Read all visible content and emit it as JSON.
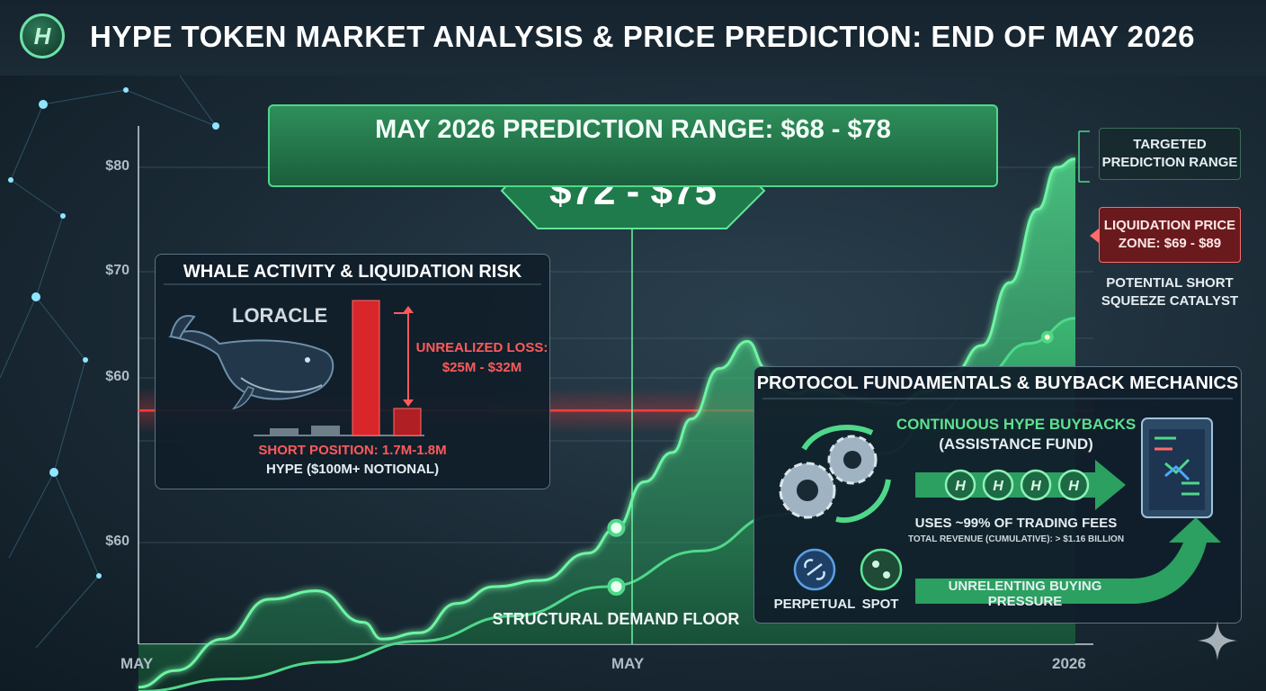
{
  "header": {
    "logo_letter": "H",
    "title": "HYPE TOKEN MARKET ANALYSIS & PRICE PREDICTION: END OF MAY 2026"
  },
  "colors": {
    "accent_green": "#4fd88a",
    "liquidation_red": "#ff3b3b",
    "background": "#1a2a35"
  },
  "chart_data": {
    "type": "area",
    "y_tick_labels": [
      "$80",
      "$70",
      "$60",
      "$60"
    ],
    "x_tick_labels": [
      "MAY",
      "MAY",
      "2026"
    ],
    "grid": true,
    "series": [
      {
        "color": "#4fd88a",
        "note": "upper price curve (values in the chart's printed y units)",
        "points": [
          [
            0,
            57.2
          ],
          [
            4,
            58.0
          ],
          [
            9,
            59.5
          ],
          [
            14,
            61.4
          ],
          [
            19,
            61.8
          ],
          [
            24,
            60.3
          ],
          [
            26,
            59.5
          ],
          [
            30,
            59.8
          ],
          [
            34,
            61.2
          ],
          [
            38,
            62.0
          ],
          [
            43,
            62.3
          ],
          [
            48,
            63.6
          ],
          [
            51,
            64.8
          ],
          [
            54,
            67.0
          ],
          [
            57,
            68.4
          ],
          [
            59,
            70.0
          ],
          [
            62,
            72.4
          ],
          [
            65,
            73.7
          ],
          [
            67,
            72.4
          ],
          [
            68,
            71.5
          ],
          [
            70,
            71.2
          ],
          [
            72,
            71.4
          ],
          [
            74,
            71.3
          ],
          [
            76,
            71.0
          ],
          [
            79,
            70.8
          ],
          [
            81,
            70.7
          ],
          [
            84,
            71.3
          ],
          [
            87,
            72.2
          ],
          [
            90,
            73.5
          ],
          [
            93,
            76.5
          ],
          [
            96,
            80.0
          ],
          [
            98,
            82.0
          ],
          [
            100,
            82.4
          ]
        ]
      },
      {
        "color": "#4fd88a",
        "note": "lower structural demand floor curve",
        "points": [
          [
            0,
            57.0
          ],
          [
            10,
            57.6
          ],
          [
            20,
            58.4
          ],
          [
            30,
            59.4
          ],
          [
            40,
            60.6
          ],
          [
            50,
            62.0
          ],
          [
            60,
            63.7
          ],
          [
            68,
            65.4
          ],
          [
            75,
            67.0
          ],
          [
            80,
            68.4
          ],
          [
            85,
            70.2
          ],
          [
            90,
            72.0
          ],
          [
            95,
            73.6
          ],
          [
            100,
            74.8
          ]
        ]
      }
    ],
    "liquidation_line": 70.4,
    "highlight_points": [
      [
        51,
        64.8
      ],
      [
        51,
        62.0
      ],
      [
        97,
        73.9
      ]
    ],
    "prediction": {
      "range_label": "MAY 2026 PREDICTION RANGE: $68 - $78",
      "target_label": "$72 - $75"
    },
    "annotations": {
      "targeted": "TARGETED PREDICTION RANGE",
      "liquidation": "LIQUIDATION PRICE ZONE: $69 - $89",
      "squeeze": "POTENTIAL SHORT SQUEEZE CATALYST",
      "floor": "STRUCTURAL DEMAND FLOOR"
    }
  },
  "whale_panel": {
    "title": "WHALE ACTIVITY & LIQUIDATION RISK",
    "name": "LORACLE",
    "loss_label": "UNREALIZED LOSS: $25M - $32M",
    "short_position": "SHORT POSITION: 1.7M-1.8M",
    "notional": "HYPE ($100M+ NOTIONAL)"
  },
  "protocol_panel": {
    "title": "PROTOCOL FUNDAMENTALS & BUYBACK MECHANICS",
    "buyback": "CONTINUOUS HYPE BUYBACKS",
    "fund": "(ASSISTANCE FUND)",
    "uses": "USES ~99% OF TRADING FEES",
    "revenue": "TOTAL REVENUE (CUMULATIVE): > $1.16 BILLION",
    "perpetual": "PERPETUAL",
    "spot": "SPOT",
    "pressure": "UNRELENTING BUYING PRESSURE",
    "coin_letter": "H"
  }
}
